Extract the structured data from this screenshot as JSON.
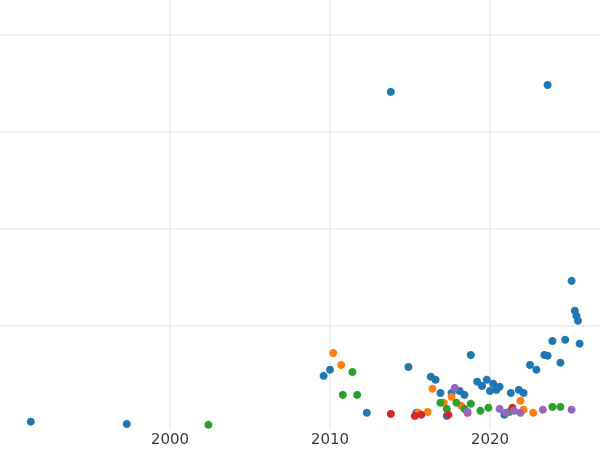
{
  "colors": {
    "background": "#ffffff",
    "grid": "#e3e3e3",
    "tick_label": "#3a3a3a",
    "series_blue": "#1f77b4",
    "series_orange": "#ff7f0e",
    "series_green": "#2ca02c",
    "series_red": "#d62728",
    "series_purple": "#9467bd"
  },
  "chart_data": {
    "type": "scatter",
    "title": "",
    "xlabel": "",
    "ylabel": "",
    "grid": true,
    "legend": "none",
    "y_axis_labels_visible": false,
    "x_ticks": [
      2000,
      2010,
      2020
    ],
    "x_tick_labels": [
      "2000",
      "2010",
      "2020"
    ],
    "y_gridlines": [
      25,
      50,
      75,
      100
    ],
    "xlim": [
      1989.375,
      2026.875
    ],
    "ylim": [
      -7,
      109
    ],
    "marker_radius": 4,
    "series": [
      {
        "name": "series-blue",
        "color": "#1f77b4",
        "points": [
          [
            1991.3,
            0.3
          ],
          [
            1997.3,
            -0.3
          ],
          [
            2009.6,
            12.1
          ],
          [
            2010.0,
            13.7
          ],
          [
            2012.3,
            2.6
          ],
          [
            2013.8,
            85.3
          ],
          [
            2014.9,
            14.4
          ],
          [
            2015.4,
            2.6
          ],
          [
            2016.3,
            11.9
          ],
          [
            2016.6,
            11.1
          ],
          [
            2016.9,
            7.7
          ],
          [
            2017.3,
            1.8
          ],
          [
            2017.6,
            7.7
          ],
          [
            2018.1,
            8.2
          ],
          [
            2018.4,
            7.2
          ],
          [
            2018.8,
            17.5
          ],
          [
            2019.2,
            10.6
          ],
          [
            2019.5,
            9.5
          ],
          [
            2019.8,
            11.1
          ],
          [
            2020.0,
            8.2
          ],
          [
            2020.2,
            10.1
          ],
          [
            2020.4,
            8.5
          ],
          [
            2020.6,
            9.3
          ],
          [
            2020.9,
            2.1
          ],
          [
            2021.3,
            7.7
          ],
          [
            2021.8,
            8.5
          ],
          [
            2022.1,
            7.7
          ],
          [
            2022.5,
            14.9
          ],
          [
            2022.9,
            13.7
          ],
          [
            2023.4,
            17.5
          ],
          [
            2023.6,
            87.1
          ],
          [
            2023.6,
            17.3
          ],
          [
            2023.9,
            21.1
          ],
          [
            2024.4,
            15.5
          ],
          [
            2024.7,
            21.4
          ],
          [
            2025.1,
            36.6
          ],
          [
            2025.3,
            28.9
          ],
          [
            2025.4,
            27.6
          ],
          [
            2025.5,
            26.3
          ],
          [
            2025.6,
            20.4
          ]
        ]
      },
      {
        "name": "series-orange",
        "color": "#ff7f0e",
        "points": [
          [
            2010.2,
            18.0
          ],
          [
            2010.7,
            14.9
          ],
          [
            2015.5,
            2.6
          ],
          [
            2016.1,
            2.8
          ],
          [
            2016.4,
            8.8
          ],
          [
            2017.1,
            5.2
          ],
          [
            2017.6,
            6.7
          ],
          [
            2018.2,
            4.4
          ],
          [
            2021.9,
            5.7
          ],
          [
            2022.1,
            3.4
          ],
          [
            2022.7,
            2.6
          ]
        ]
      },
      {
        "name": "series-green",
        "color": "#2ca02c",
        "points": [
          [
            2002.4,
            -0.5
          ],
          [
            2010.8,
            7.2
          ],
          [
            2011.4,
            13.1
          ],
          [
            2011.7,
            7.2
          ],
          [
            2016.9,
            5.2
          ],
          [
            2017.3,
            3.6
          ],
          [
            2017.9,
            5.2
          ],
          [
            2018.4,
            3.6
          ],
          [
            2018.8,
            4.9
          ],
          [
            2019.4,
            3.1
          ],
          [
            2019.9,
            3.9
          ],
          [
            2021.2,
            2.8
          ],
          [
            2023.9,
            4.1
          ],
          [
            2024.4,
            4.1
          ]
        ]
      },
      {
        "name": "series-red",
        "color": "#d62728",
        "points": [
          [
            2013.8,
            2.3
          ],
          [
            2015.3,
            1.8
          ],
          [
            2015.7,
            2.1
          ],
          [
            2017.4,
            2.1
          ],
          [
            2018.6,
            2.6
          ],
          [
            2021.4,
            3.9
          ]
        ]
      },
      {
        "name": "series-purple",
        "color": "#9467bd",
        "points": [
          [
            2017.8,
            9.0
          ],
          [
            2018.6,
            2.8
          ],
          [
            2020.6,
            3.6
          ],
          [
            2021.0,
            2.6
          ],
          [
            2021.5,
            3.1
          ],
          [
            2021.9,
            2.6
          ],
          [
            2023.3,
            3.4
          ],
          [
            2025.1,
            3.4
          ]
        ]
      }
    ]
  }
}
